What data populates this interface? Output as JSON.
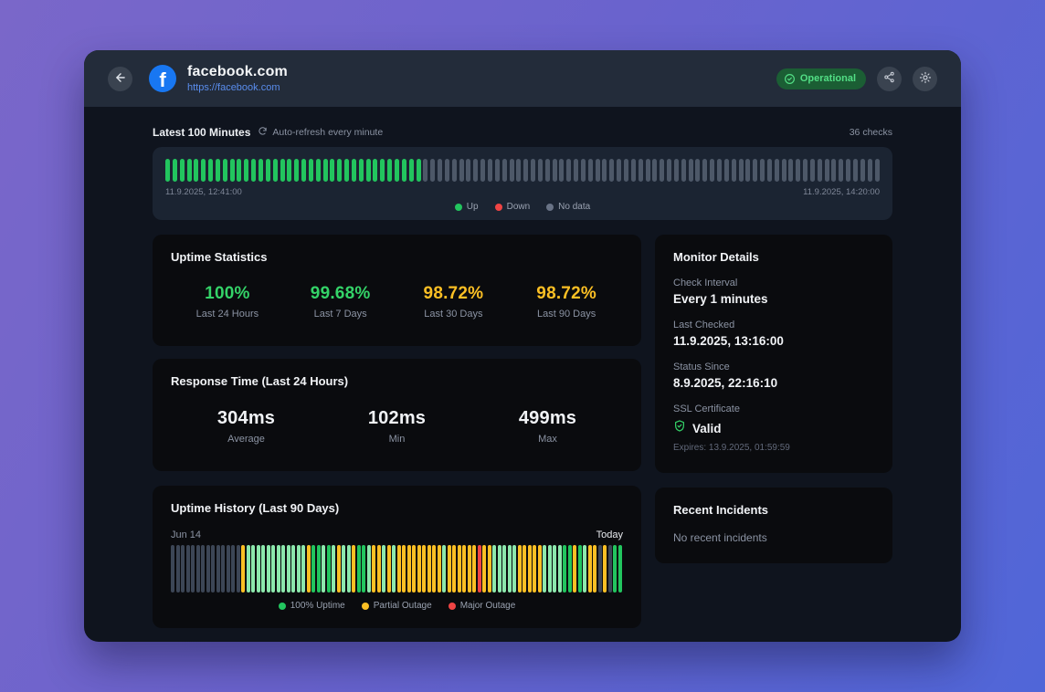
{
  "header": {
    "title": "facebook.com",
    "url": "https://facebook.com",
    "logo_letter": "f",
    "status_badge": "Operational"
  },
  "latest_strip": {
    "title": "Latest 100 Minutes",
    "refresh_note": "Auto-refresh every minute",
    "checks_count": "36 checks",
    "start_time": "11.9.2025, 12:41:00",
    "end_time": "11.9.2025, 14:20:00",
    "counts": {
      "up": 36,
      "nodata": 64
    },
    "legend": [
      {
        "label": "Up",
        "color": "#22c55e"
      },
      {
        "label": "Down",
        "color": "#ef4444"
      },
      {
        "label": "No data",
        "color": "#697386"
      }
    ]
  },
  "uptime_stats": {
    "title": "Uptime Statistics",
    "stats": [
      {
        "value": "100%",
        "label": "Last 24 Hours",
        "color": "#34d368"
      },
      {
        "value": "99.68%",
        "label": "Last 7 Days",
        "color": "#34d368"
      },
      {
        "value": "98.72%",
        "label": "Last 30 Days",
        "color": "#fbbf24"
      },
      {
        "value": "98.72%",
        "label": "Last 90 Days",
        "color": "#fbbf24"
      }
    ]
  },
  "response_time": {
    "title": "Response Time (Last 24 Hours)",
    "stats": [
      {
        "value": "304ms",
        "label": "Average"
      },
      {
        "value": "102ms",
        "label": "Min"
      },
      {
        "value": "499ms",
        "label": "Max"
      }
    ]
  },
  "uptime_history": {
    "title": "Uptime History (Last 90 Days)",
    "start_label": "Jun 14",
    "end_label": "Today",
    "status_colors": {
      "n": "#3c4656",
      "p": "#fbbf24",
      "l": "#8ce8ac",
      "g": "#22c55e",
      "m": "#ef4444"
    },
    "bars": [
      "n",
      "n",
      "n",
      "n",
      "n",
      "n",
      "n",
      "n",
      "n",
      "n",
      "n",
      "n",
      "n",
      "n",
      "p",
      "l",
      "l",
      "l",
      "l",
      "l",
      "l",
      "l",
      "l",
      "l",
      "l",
      "l",
      "l",
      "p",
      "g",
      "g",
      "l",
      "g",
      "l",
      "p",
      "l",
      "l",
      "p",
      "g",
      "g",
      "l",
      "p",
      "p",
      "l",
      "p",
      "l",
      "p",
      "p",
      "p",
      "p",
      "p",
      "p",
      "p",
      "p",
      "p",
      "l",
      "p",
      "p",
      "p",
      "p",
      "p",
      "p",
      "m",
      "p",
      "p",
      "l",
      "l",
      "l",
      "l",
      "l",
      "p",
      "p",
      "p",
      "p",
      "p",
      "l",
      "l",
      "l",
      "l",
      "g",
      "g",
      "p",
      "g",
      "l",
      "p",
      "p",
      "n",
      "p",
      "n",
      "g",
      "g"
    ],
    "legend": [
      {
        "label": "100% Uptime",
        "color": "#22c55e"
      },
      {
        "label": "Partial Outage",
        "color": "#fbbf24"
      },
      {
        "label": "Major Outage",
        "color": "#ef4444"
      }
    ]
  },
  "monitor_details": {
    "title": "Monitor Details",
    "fields": [
      {
        "label": "Check Interval",
        "value": "Every 1 minutes"
      },
      {
        "label": "Last Checked",
        "value": "11.9.2025, 13:16:00"
      },
      {
        "label": "Status Since",
        "value": "8.9.2025, 22:16:10"
      }
    ],
    "ssl_label": "SSL Certificate",
    "ssl_value": "Valid",
    "ssl_expires": "Expires: 13.9.2025, 01:59:59"
  },
  "recent_incidents": {
    "title": "Recent Incidents",
    "empty": "No recent incidents"
  },
  "colors": {
    "strip_up": "#22c55e",
    "strip_nodata": "#4d5868",
    "accent_green": "#34d368",
    "accent_yellow": "#fbbf24",
    "accent_red": "#ef4444"
  }
}
